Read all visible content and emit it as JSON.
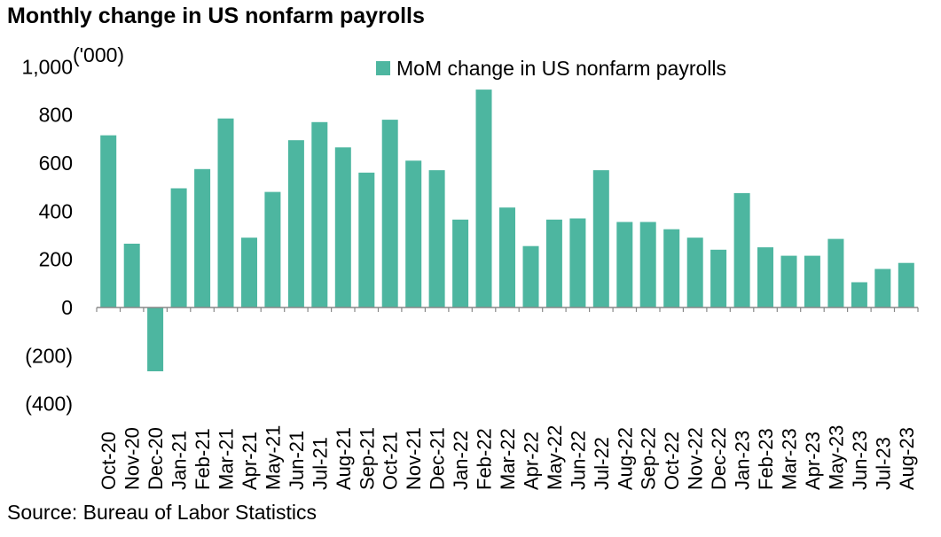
{
  "title": "Monthly change in US nonfarm payrolls",
  "source": "Source: Bureau of Labor Statistics",
  "chart_data": {
    "type": "bar",
    "unit_label": "('000)",
    "legend_position": "top",
    "grid": false,
    "bar_color": "#4db6a0",
    "ylim": [
      -400,
      1000
    ],
    "yticks": [
      1000,
      800,
      600,
      400,
      200,
      0,
      -200,
      -400
    ],
    "ytick_labels": [
      "1,000",
      "800",
      "600",
      "400",
      "200",
      "0",
      "(200)",
      "(400)"
    ],
    "categories": [
      "Oct-20",
      "Nov-20",
      "Dec-20",
      "Jan-21",
      "Feb-21",
      "Mar-21",
      "Apr-21",
      "May-21",
      "Jun-21",
      "Jul-21",
      "Aug-21",
      "Sep-21",
      "Oct-21",
      "Nov-21",
      "Dec-21",
      "Jan-22",
      "Feb-22",
      "Mar-22",
      "Apr-22",
      "May-22",
      "Jun-22",
      "Jul-22",
      "Aug-22",
      "Sep-22",
      "Oct-22",
      "Nov-22",
      "Dec-22",
      "Jan-23",
      "Feb-23",
      "Mar-23",
      "Apr-23",
      "May-23",
      "Jun-23",
      "Jul-23",
      "Aug-23"
    ],
    "series": [
      {
        "name": "MoM change in US nonfarm payrolls",
        "values": [
          715,
          265,
          -265,
          495,
          575,
          785,
          290,
          480,
          695,
          770,
          665,
          560,
          780,
          610,
          570,
          365,
          905,
          415,
          255,
          365,
          370,
          570,
          355,
          355,
          325,
          290,
          240,
          475,
          250,
          215,
          215,
          285,
          105,
          160,
          185
        ]
      }
    ]
  }
}
